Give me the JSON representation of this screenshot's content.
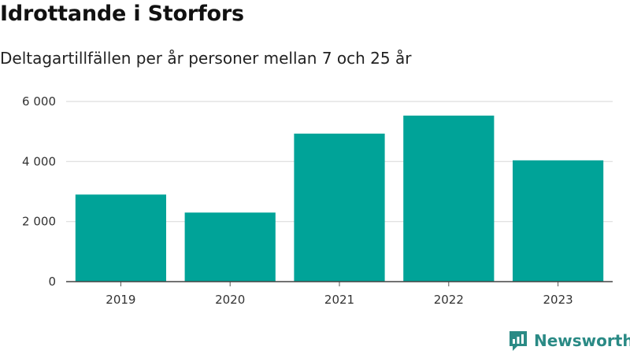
{
  "chart_data": {
    "type": "bar",
    "title": "Idrottande i Storfors",
    "subtitle": "Deltagartillfällen per år personer mellan 7 och 25 år",
    "xlabel": "",
    "ylabel": "",
    "categories": [
      "2019",
      "2020",
      "2021",
      "2022",
      "2023"
    ],
    "values": [
      2900,
      2300,
      4930,
      5530,
      4040
    ],
    "ylim": [
      0,
      6000
    ],
    "yticks": [
      0,
      2000,
      4000,
      6000
    ],
    "ytick_labels": [
      "0",
      "2 000",
      "4 000",
      "6 000"
    ],
    "grid": true,
    "bar_color": "#00a398"
  },
  "branding": {
    "name": "Newsworthy",
    "icon": "newsworthy-logo-icon",
    "color": "#2a8a85"
  }
}
